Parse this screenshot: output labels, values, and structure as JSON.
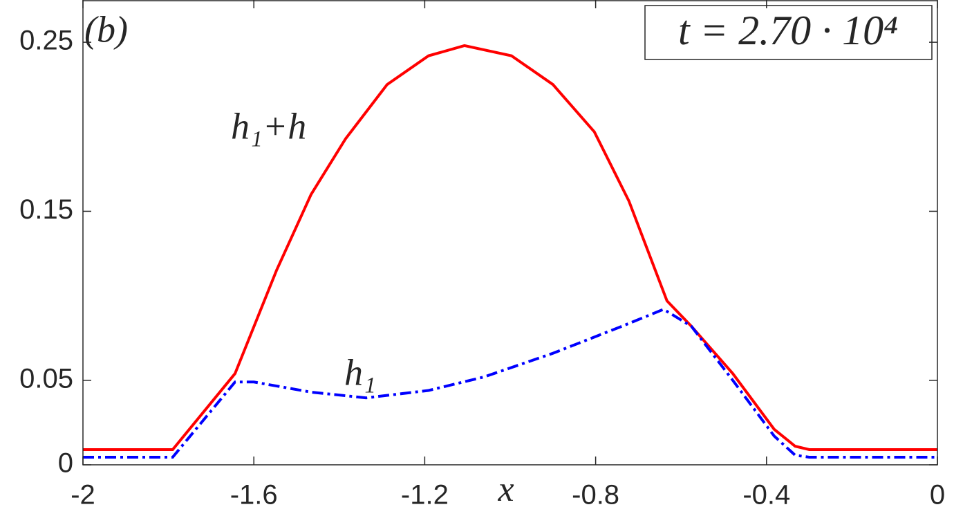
{
  "chart_data": {
    "type": "line",
    "xlabel": "x",
    "xlim": [
      -2,
      0
    ],
    "xticks": [
      -2,
      -1.6,
      -1.2,
      -0.8,
      -0.4,
      0
    ],
    "ylim": [
      0,
      0.275
    ],
    "yticks": [
      0,
      0.05,
      0.15,
      0.25
    ],
    "grid": false,
    "annotations": [
      "(b)",
      "h₁+h",
      "h₁",
      "t = 2.70 · 10⁴"
    ],
    "series": [
      {
        "name": "h₁+h",
        "color": "#ff0000",
        "style": "solid",
        "x": [
          -2,
          -1.79,
          -1.644,
          -1.547,
          -1.466,
          -1.385,
          -1.288,
          -1.191,
          -1.107,
          -0.997,
          -0.9,
          -0.803,
          -0.722,
          -0.633,
          -0.576,
          -0.479,
          -0.382,
          -0.333,
          -0.3,
          0
        ],
        "values": [
          0.009,
          0.009,
          0.054,
          0.115,
          0.16,
          0.193,
          0.225,
          0.242,
          0.248,
          0.242,
          0.225,
          0.197,
          0.156,
          0.097,
          0.082,
          0.054,
          0.021,
          0.011,
          0.009,
          0.009
        ]
      },
      {
        "name": "h₁",
        "color": "#0000ff",
        "style": "dashdot",
        "x": [
          -2,
          -1.79,
          -1.644,
          -1.6,
          -1.466,
          -1.337,
          -1.191,
          -1.061,
          -0.9,
          -0.738,
          -0.641,
          -0.576,
          -0.479,
          -0.382,
          -0.333,
          -0.3,
          0
        ],
        "values": [
          0.0045,
          0.0045,
          0.049,
          0.049,
          0.043,
          0.0396,
          0.044,
          0.052,
          0.066,
          0.082,
          0.092,
          0.082,
          0.05,
          0.017,
          0.0057,
          0.0045,
          0.0045
        ]
      }
    ]
  }
}
